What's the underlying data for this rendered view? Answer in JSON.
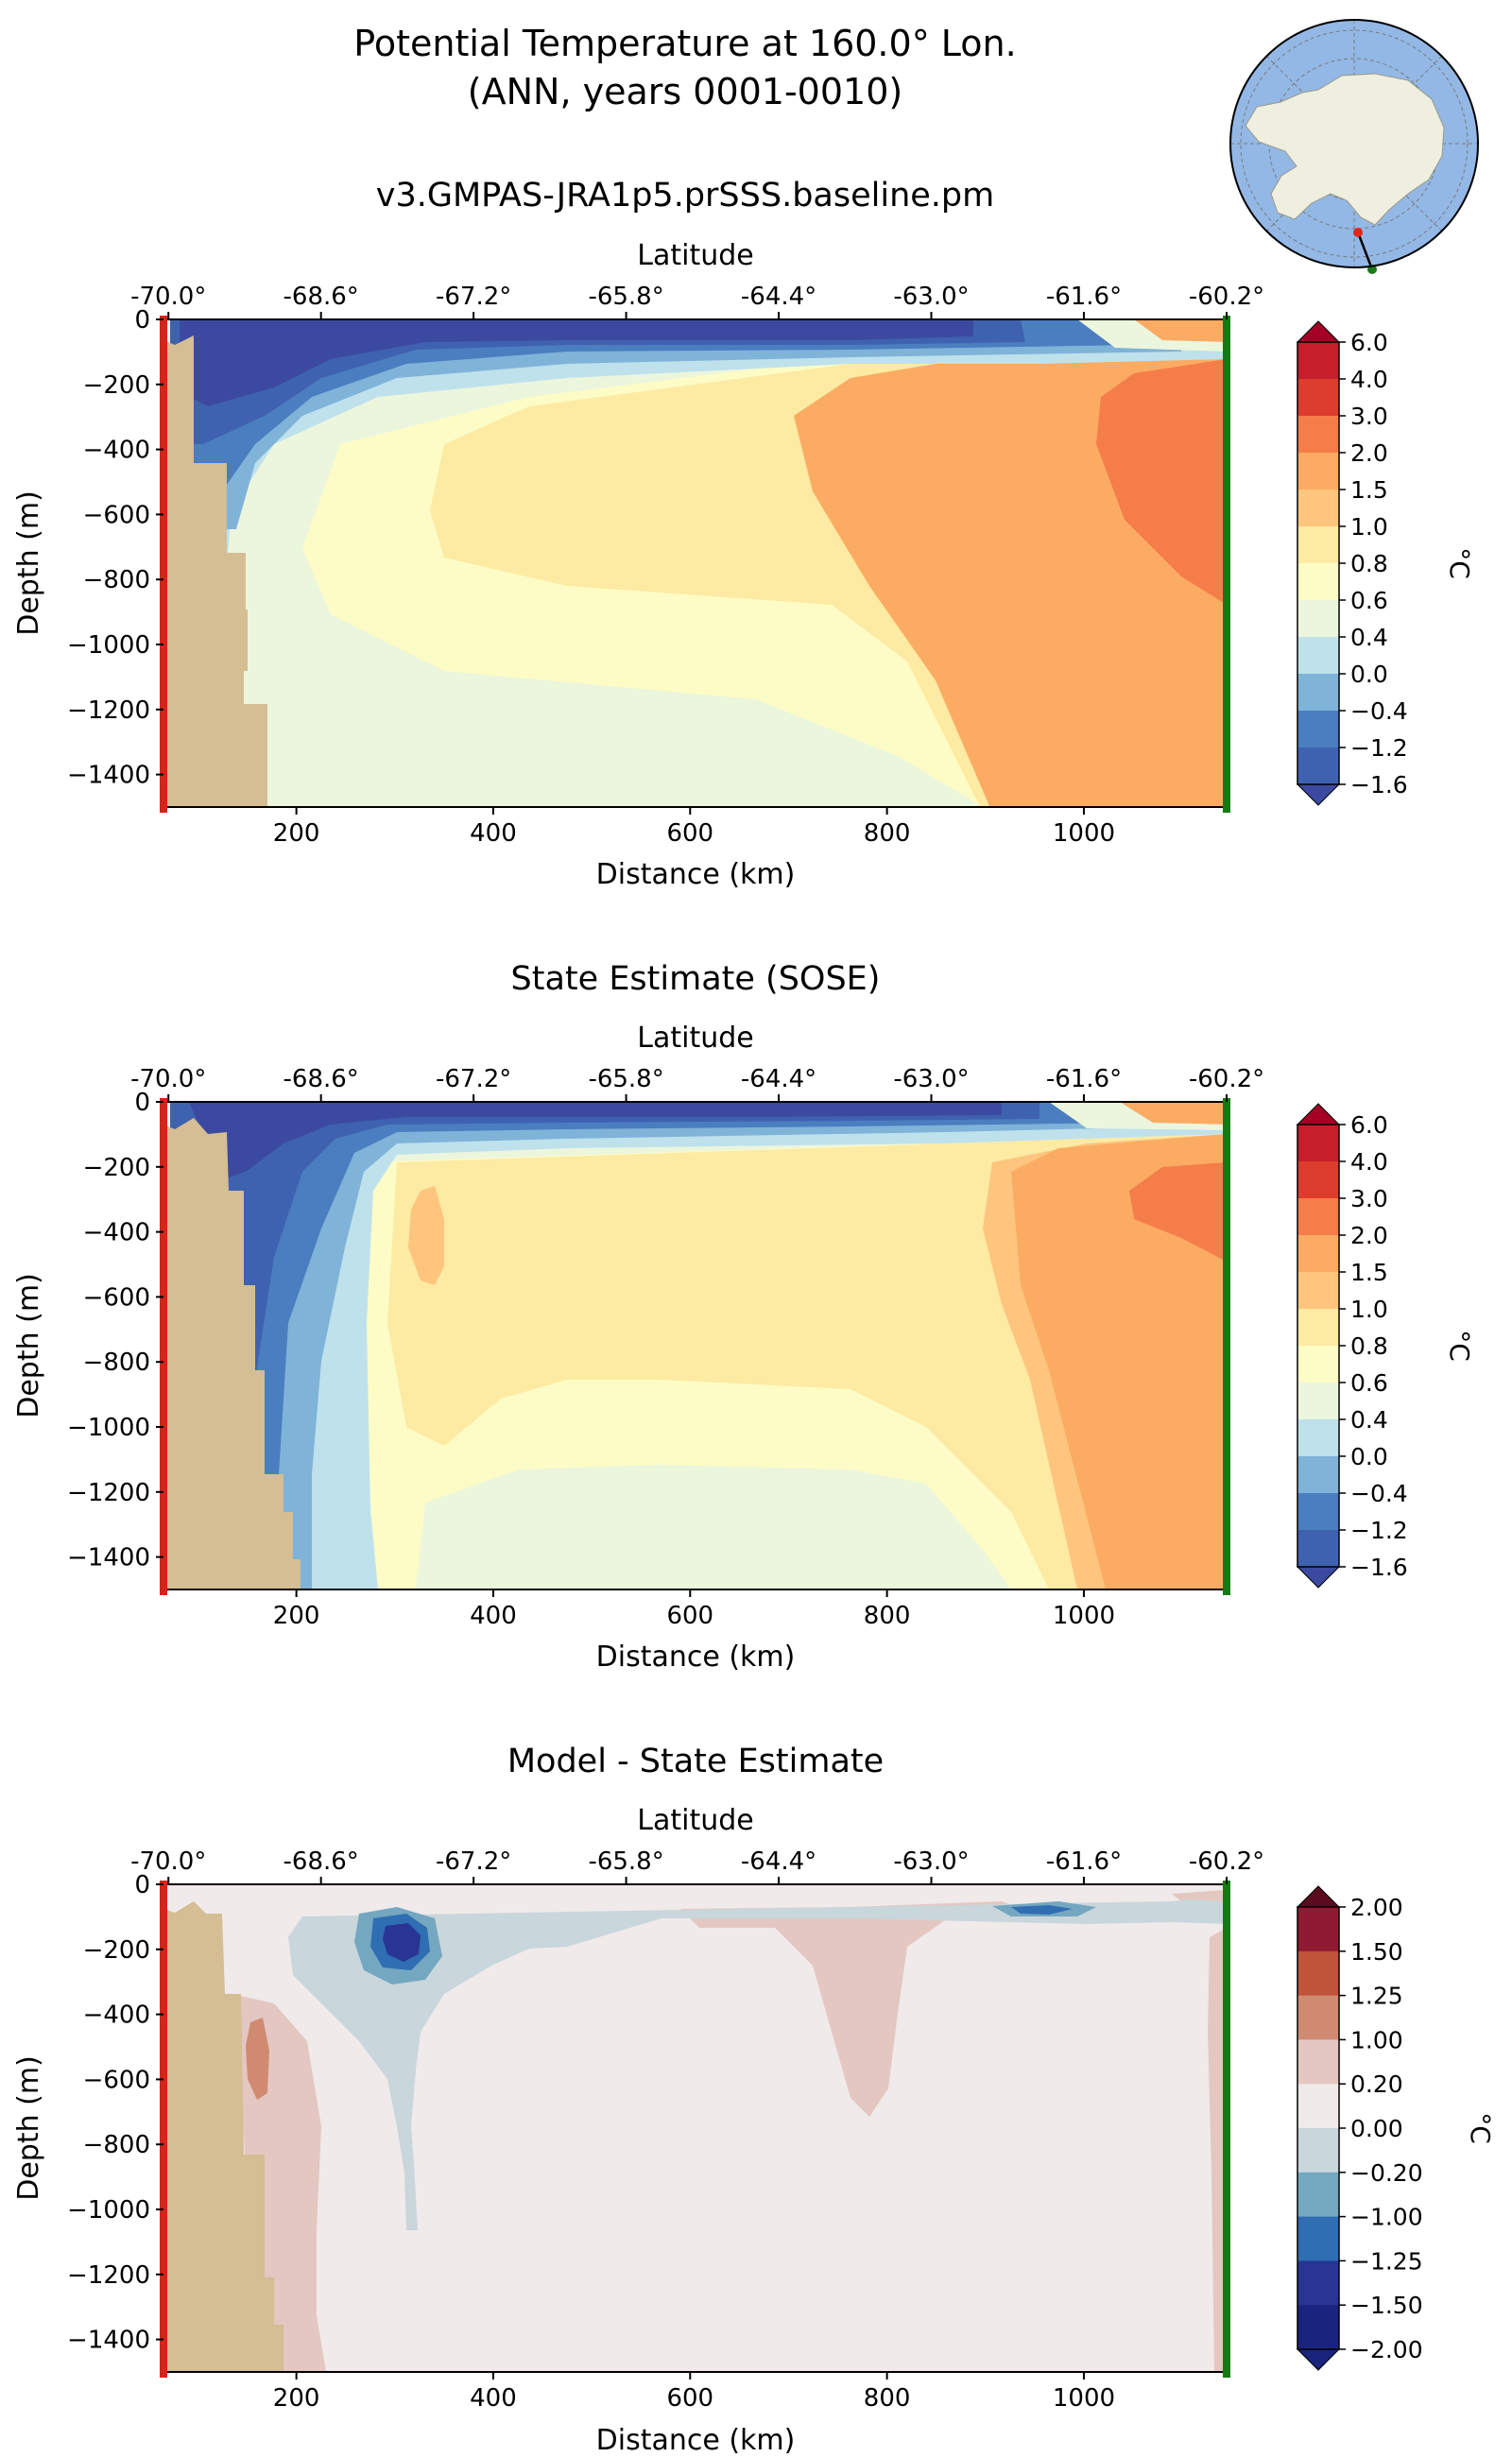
{
  "figure": {
    "title_line1": "Potential Temperature at 160.0° Lon.",
    "title_line2": "(ANN, years 0001-0010)"
  },
  "inset_map": {
    "land_color": "#efefe0",
    "ocean_color": "#93b8e6",
    "start_marker_color": "#e3261b",
    "end_marker_color": "#1b7a1b"
  },
  "colors": {
    "land_fill": "#d5bd94",
    "start_line": "#d8221a",
    "end_line": "#137b13",
    "temp_cmap": [
      "#3b4aa0",
      "#3f62b0",
      "#4a7ec0",
      "#7fb3d8",
      "#bfe1ec",
      "#ecf6dd",
      "#fdfcc6",
      "#fdeaa3",
      "#fdc57d",
      "#fcab63",
      "#f57d4a",
      "#dd3d2d",
      "#c51f2c",
      "#a50026"
    ],
    "diff_cmap": [
      "#1a237e",
      "#283593",
      "#2f6eb2",
      "#74a7c0",
      "#c9d6dc",
      "#f0eaea",
      "#e4c7c1",
      "#d08a72",
      "#c0543a",
      "#8f1a31",
      "#5c0a20"
    ]
  },
  "chart_data": [
    {
      "type": "heatmap",
      "title": "v3.GMPAS-JRA1p5.prSSS.baseline.pm",
      "xlabel": "Distance (km)",
      "ylabel": "Depth (m)",
      "top_xlabel": "Latitude",
      "xlim": [
        65,
        1145
      ],
      "ylim": [
        -1500,
        0
      ],
      "x_ticks": [
        200,
        400,
        600,
        800,
        1000
      ],
      "x_tick_labels": [
        "200",
        "400",
        "600",
        "800",
        "1000"
      ],
      "y_ticks": [
        0,
        -200,
        -400,
        -600,
        -800,
        -1000,
        -1200,
        -1400
      ],
      "y_tick_labels": [
        "0",
        "−200",
        "−400",
        "−600",
        "−800",
        "−1000",
        "−1200",
        "−1400"
      ],
      "top_ticks": [
        70,
        225,
        380,
        535,
        690,
        845,
        1000,
        1145
      ],
      "top_tick_labels": [
        "-70.0°",
        "-68.6°",
        "-67.2°",
        "-65.8°",
        "-64.4°",
        "-63.0°",
        "-61.6°",
        "-60.2°"
      ],
      "colorbar": {
        "label": "°C",
        "tick_labels": [
          "6.0",
          "4.0",
          "3.0",
          "2.0",
          "1.5",
          "1.0",
          "0.8",
          "0.6",
          "0.4",
          "0.0",
          "−0.4",
          "−1.2",
          "−1.6"
        ],
        "extend": "both"
      }
    },
    {
      "type": "heatmap",
      "title": "State Estimate (SOSE)",
      "xlabel": "Distance (km)",
      "ylabel": "Depth (m)",
      "top_xlabel": "Latitude",
      "xlim": [
        65,
        1145
      ],
      "ylim": [
        -1500,
        0
      ],
      "x_ticks": [
        200,
        400,
        600,
        800,
        1000
      ],
      "x_tick_labels": [
        "200",
        "400",
        "600",
        "800",
        "1000"
      ],
      "y_ticks": [
        0,
        -200,
        -400,
        -600,
        -800,
        -1000,
        -1200,
        -1400
      ],
      "y_tick_labels": [
        "0",
        "−200",
        "−400",
        "−600",
        "−800",
        "−1000",
        "−1200",
        "−1400"
      ],
      "top_ticks": [
        70,
        225,
        380,
        535,
        690,
        845,
        1000,
        1145
      ],
      "top_tick_labels": [
        "-70.0°",
        "-68.6°",
        "-67.2°",
        "-65.8°",
        "-64.4°",
        "-63.0°",
        "-61.6°",
        "-60.2°"
      ],
      "colorbar": {
        "label": "°C",
        "tick_labels": [
          "6.0",
          "4.0",
          "3.0",
          "2.0",
          "1.5",
          "1.0",
          "0.8",
          "0.6",
          "0.4",
          "0.0",
          "−0.4",
          "−1.2",
          "−1.6"
        ],
        "extend": "both"
      }
    },
    {
      "type": "heatmap",
      "title": "Model - State Estimate",
      "xlabel": "Distance (km)",
      "ylabel": "Depth (m)",
      "top_xlabel": "Latitude",
      "xlim": [
        65,
        1145
      ],
      "ylim": [
        -1500,
        0
      ],
      "x_ticks": [
        200,
        400,
        600,
        800,
        1000
      ],
      "x_tick_labels": [
        "200",
        "400",
        "600",
        "800",
        "1000"
      ],
      "y_ticks": [
        0,
        -200,
        -400,
        -600,
        -800,
        -1000,
        -1200,
        -1400
      ],
      "y_tick_labels": [
        "0",
        "−200",
        "−400",
        "−600",
        "−800",
        "−1000",
        "−1200",
        "−1400"
      ],
      "top_ticks": [
        70,
        225,
        380,
        535,
        690,
        845,
        1000,
        1145
      ],
      "top_tick_labels": [
        "-70.0°",
        "-68.6°",
        "-67.2°",
        "-65.8°",
        "-64.4°",
        "-63.0°",
        "-61.6°",
        "-60.2°"
      ],
      "colorbar": {
        "label": "°C",
        "tick_labels": [
          "2.00",
          "1.50",
          "1.25",
          "1.00",
          "0.20",
          "0.00",
          "−0.20",
          "−1.00",
          "−1.25",
          "−1.50",
          "−2.00"
        ],
        "extend": "both"
      }
    }
  ]
}
